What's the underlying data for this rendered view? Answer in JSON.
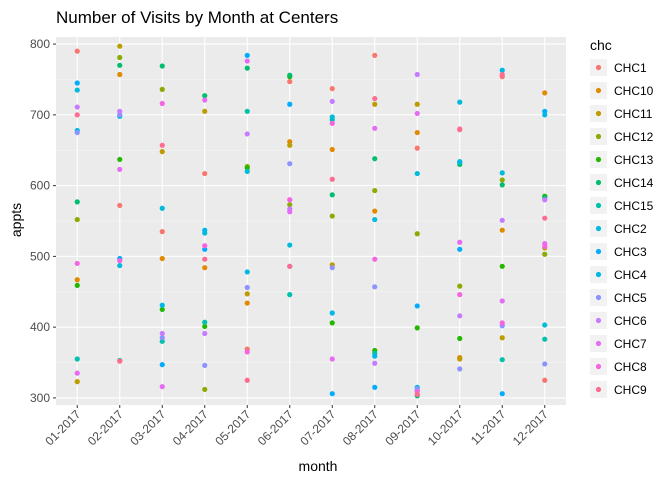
{
  "chart_data": {
    "type": "scatter",
    "title": "Number of Visits by Month at Centers",
    "xlabel": "month",
    "ylabel": "appts",
    "categories": [
      "01-2017",
      "02-2017",
      "03-2017",
      "04-2017",
      "05-2017",
      "06-2017",
      "07-2017",
      "08-2017",
      "09-2017",
      "10-2017",
      "11-2017",
      "12-2017"
    ],
    "ylim": [
      290,
      810
    ],
    "yticks": [
      300,
      400,
      500,
      600,
      700,
      800
    ],
    "grid": true,
    "legend": {
      "title": "chc",
      "position": "right"
    },
    "series": [
      {
        "name": "CHC1",
        "color": "#F8766D",
        "values": [
          790,
          572,
          535,
          617,
          369,
          747,
          737,
          784,
          653,
          679,
          754,
          325
        ]
      },
      {
        "name": "CHC10",
        "color": "#E18A00",
        "values": [
          467,
          757,
          497,
          484,
          434,
          662,
          651,
          564,
          675,
          357,
          537,
          731
        ]
      },
      {
        "name": "CHC11",
        "color": "#BE9C00",
        "values": [
          323,
          797,
          648,
          705,
          447,
          657,
          488,
          715,
          715,
          355,
          385,
          512
        ]
      },
      {
        "name": "CHC12",
        "color": "#8CAB00",
        "values": [
          552,
          781,
          736,
          312,
          627,
          573,
          557,
          593,
          532,
          458,
          608,
          503
        ]
      },
      {
        "name": "CHC13",
        "color": "#24B700",
        "values": [
          459,
          637,
          425,
          401,
          625,
          754,
          406,
          367,
          399,
          384,
          486,
          585
        ]
      },
      {
        "name": "CHC14",
        "color": "#00BE70",
        "values": [
          577,
          770,
          769,
          727,
          766,
          756,
          587,
          638,
          303,
          630,
          601,
          583
        ]
      },
      {
        "name": "CHC15",
        "color": "#00C1AB",
        "values": [
          355,
          353,
          380,
          407,
          705,
          446,
          693,
          363,
          310,
          633,
          354,
          383
        ]
      },
      {
        "name": "CHC2",
        "color": "#00BBDA",
        "values": [
          735,
          487,
          568,
          533,
          620,
          516,
          697,
          552,
          617,
          718,
          618,
          403
        ]
      },
      {
        "name": "CHC3",
        "color": "#00ACFC",
        "values": [
          745,
          497,
          347,
          510,
          784,
          715,
          306,
          315,
          430,
          510,
          306,
          705
        ]
      },
      {
        "name": "CHC4",
        "color": "#00B8E7",
        "values": [
          678,
          698,
          431,
          537,
          478,
          486,
          420,
          359,
          315,
          634,
          763,
          700
        ]
      },
      {
        "name": "CHC5",
        "color": "#8B93FF",
        "values": [
          675,
          700,
          385,
          346,
          456,
          631,
          484,
          457,
          313,
          341,
          402,
          348
        ]
      },
      {
        "name": "CHC6",
        "color": "#C77CFF",
        "values": [
          711,
          705,
          391,
          391,
          673,
          567,
          719,
          349,
          757,
          416,
          551,
          580
        ]
      },
      {
        "name": "CHC7",
        "color": "#E76BF3",
        "values": [
          335,
          623,
          316,
          721,
          776,
          563,
          355,
          681,
          702,
          520,
          437,
          518
        ]
      },
      {
        "name": "CHC8",
        "color": "#F564E3",
        "values": [
          490,
          494,
          716,
          515,
          365,
          580,
          688,
          496,
          309,
          446,
          406,
          514
        ]
      },
      {
        "name": "CHC9",
        "color": "#FF6C91",
        "values": [
          700,
          352,
          657,
          496,
          325,
          486,
          609,
          723,
          305,
          680,
          757,
          554
        ]
      }
    ]
  }
}
